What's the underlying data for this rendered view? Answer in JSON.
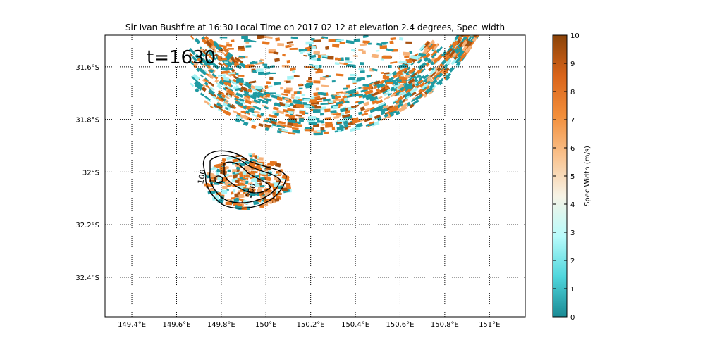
{
  "title": "Sir Ivan Bushfire at 16:30 Local Time on 2017 02 12 at elevation 2.4 degrees, Spec_width",
  "time_stamp": "t=1630",
  "map": {
    "x_ticks": [
      {
        "value": 149.4,
        "label": "149.4°E"
      },
      {
        "value": 149.6,
        "label": "149.6°E"
      },
      {
        "value": 149.8,
        "label": "149.8°E"
      },
      {
        "value": 150.0,
        "label": "150°E"
      },
      {
        "value": 150.2,
        "label": "150.2°E"
      },
      {
        "value": 150.4,
        "label": "150.4°E"
      },
      {
        "value": 150.6,
        "label": "150.6°E"
      },
      {
        "value": 150.8,
        "label": "150.8°E"
      },
      {
        "value": 151.0,
        "label": "151°E"
      }
    ],
    "y_ticks": [
      {
        "value": -31.6,
        "label": "31.6°S"
      },
      {
        "value": -31.8,
        "label": "31.8°S"
      },
      {
        "value": -32.0,
        "label": "32°S"
      },
      {
        "value": -32.2,
        "label": "32.2°S"
      },
      {
        "value": -32.4,
        "label": "32.4°S"
      }
    ],
    "lon_range": [
      149.28,
      151.16
    ],
    "lat_range": [
      -32.55,
      -31.48
    ],
    "grid": "dotted",
    "contour_labels": [
      "100",
      "200"
    ]
  },
  "colorbar": {
    "label": "Spec Width (m/s)",
    "min": 0,
    "max": 10,
    "ticks": [
      "0",
      "1",
      "2",
      "3",
      "4",
      "5",
      "6",
      "7",
      "8",
      "9",
      "10"
    ],
    "colors": [
      "#1a8a94",
      "#4fd6dc",
      "#b8fbfb",
      "#f7f3e6",
      "#f9c28e",
      "#f28e3a",
      "#d9641a",
      "#8a4308"
    ]
  },
  "colors": {
    "teal": "#1f9aa2",
    "cyan": "#a8f4f6",
    "orange": "#e6761f",
    "brown": "#a8510f",
    "peach": "#f6b27a"
  }
}
